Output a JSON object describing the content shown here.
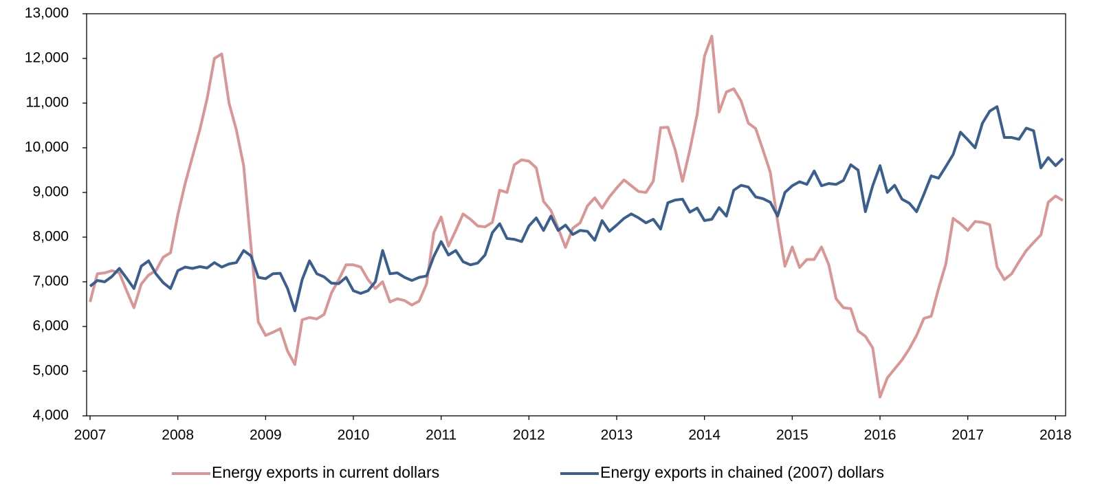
{
  "chart_data": {
    "type": "line",
    "categories": [
      "2007",
      null,
      null,
      null,
      null,
      null,
      null,
      null,
      null,
      null,
      null,
      null,
      "2008",
      null,
      null,
      null,
      null,
      null,
      null,
      null,
      null,
      null,
      null,
      null,
      "2009",
      null,
      null,
      null,
      null,
      null,
      null,
      null,
      null,
      null,
      null,
      null,
      "2010",
      null,
      null,
      null,
      null,
      null,
      null,
      null,
      null,
      null,
      null,
      null,
      "2011",
      null,
      null,
      null,
      null,
      null,
      null,
      null,
      null,
      null,
      null,
      null,
      "2012",
      null,
      null,
      null,
      null,
      null,
      null,
      null,
      null,
      null,
      null,
      null,
      "2013",
      null,
      null,
      null,
      null,
      null,
      null,
      null,
      null,
      null,
      null,
      null,
      "2014",
      null,
      null,
      null,
      null,
      null,
      null,
      null,
      null,
      null,
      null,
      null,
      "2015",
      null,
      null,
      null,
      null,
      null,
      null,
      null,
      null,
      null,
      null,
      null,
      "2016",
      null,
      null,
      null,
      null,
      null,
      null,
      null,
      null,
      null,
      null,
      null,
      "2017",
      null,
      null,
      null,
      null,
      null,
      null,
      null,
      null,
      null,
      null,
      null,
      "2018",
      null
    ],
    "series": [
      {
        "name": "Energy exports in current dollars",
        "color": "#d99694",
        "values": [
          6550,
          7180,
          7200,
          7250,
          7200,
          6800,
          6420,
          6950,
          7150,
          7250,
          7550,
          7650,
          8500,
          9200,
          9800,
          10400,
          11100,
          12000,
          12100,
          11000,
          10400,
          9600,
          7800,
          6100,
          5800,
          5870,
          5950,
          5450,
          5150,
          6150,
          6200,
          6170,
          6270,
          6750,
          7050,
          7380,
          7380,
          7330,
          7050,
          6850,
          7000,
          6550,
          6620,
          6580,
          6480,
          6570,
          6950,
          8100,
          8450,
          7800,
          8150,
          8520,
          8400,
          8250,
          8230,
          8330,
          9050,
          9000,
          9620,
          9730,
          9700,
          9550,
          8800,
          8600,
          8200,
          7770,
          8200,
          8320,
          8700,
          8880,
          8650,
          8900,
          9100,
          9280,
          9150,
          9020,
          9000,
          9250,
          10450,
          10460,
          9950,
          9250,
          9950,
          10750,
          12050,
          12500,
          10800,
          11250,
          11320,
          11050,
          10550,
          10430,
          9950,
          9450,
          8350,
          7350,
          7780,
          7320,
          7500,
          7500,
          7780,
          7380,
          6620,
          6420,
          6400,
          5900,
          5780,
          5520,
          4420,
          4850,
          5050,
          5250,
          5500,
          5800,
          6180,
          6230,
          6850,
          7400,
          8420,
          8300,
          8150,
          8350,
          8330,
          8280,
          7330,
          7050,
          7180,
          7450,
          7700,
          7880,
          8050,
          8780,
          8920,
          8820
        ]
      },
      {
        "name": "Energy exports in chained (2007) dollars",
        "color": "#3a5f8f",
        "values": [
          6900,
          7030,
          7000,
          7120,
          7300,
          7080,
          6850,
          7350,
          7470,
          7180,
          6980,
          6850,
          7250,
          7330,
          7300,
          7340,
          7310,
          7430,
          7330,
          7400,
          7430,
          7700,
          7580,
          7100,
          7070,
          7180,
          7190,
          6850,
          6350,
          7050,
          7470,
          7180,
          7110,
          6970,
          6960,
          7100,
          6800,
          6740,
          6800,
          7000,
          7700,
          7180,
          7200,
          7100,
          7030,
          7100,
          7130,
          7570,
          7900,
          7600,
          7700,
          7450,
          7380,
          7420,
          7600,
          8100,
          8300,
          7970,
          7950,
          7900,
          8250,
          8430,
          8150,
          8470,
          8150,
          8270,
          8060,
          8150,
          8130,
          7930,
          8370,
          8130,
          8270,
          8420,
          8520,
          8430,
          8320,
          8400,
          8180,
          8770,
          8830,
          8850,
          8560,
          8650,
          8370,
          8400,
          8660,
          8470,
          9050,
          9160,
          9120,
          8900,
          8860,
          8780,
          8470,
          9000,
          9150,
          9240,
          9180,
          9480,
          9150,
          9200,
          9180,
          9270,
          9620,
          9500,
          8570,
          9150,
          9600,
          9000,
          9160,
          8850,
          8760,
          8570,
          8960,
          9370,
          9320,
          9580,
          9850,
          10350,
          10180,
          10000,
          10550,
          10820,
          10920,
          10230,
          10230,
          10190,
          10440,
          10380,
          9550,
          9780,
          9600,
          9760
        ]
      }
    ],
    "ylim": [
      4000,
      13000
    ],
    "yticks": [
      {
        "value": 4000,
        "label": "4,000"
      },
      {
        "value": 5000,
        "label": "5,000"
      },
      {
        "value": 6000,
        "label": "6,000"
      },
      {
        "value": 7000,
        "label": "7,000"
      },
      {
        "value": 8000,
        "label": "8,000"
      },
      {
        "value": 9000,
        "label": "9,000"
      },
      {
        "value": 10000,
        "label": "10,000"
      },
      {
        "value": 11000,
        "label": "11,000"
      },
      {
        "value": 12000,
        "label": "12,000"
      },
      {
        "value": 13000,
        "label": "13,000"
      }
    ],
    "grid": false,
    "legend": "bottom"
  }
}
